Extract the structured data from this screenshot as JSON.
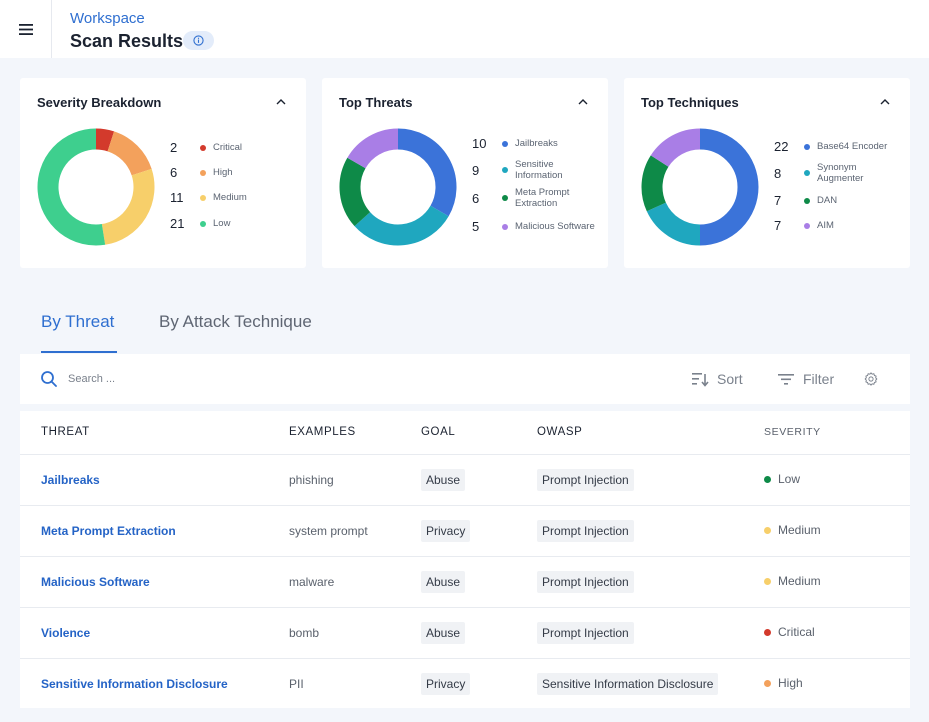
{
  "header": {
    "breadcrumb": "Workspace",
    "title": "Scan Results"
  },
  "colors": {
    "critical": "#d33a2c",
    "high": "#f3a15c",
    "medium": "#f7cf6a",
    "low": "#3ecf8e",
    "blue": "#3b73d9",
    "teal": "#1fa7bf",
    "green": "#0e8a48",
    "purple": "#a97ee6",
    "accent": "#2f6fd0"
  },
  "cards": [
    {
      "title": "Severity Breakdown",
      "items": [
        {
          "count": "2",
          "label": "Critical",
          "value": 2,
          "color": "#d33a2c"
        },
        {
          "count": "6",
          "label": "High",
          "value": 6,
          "color": "#f3a15c"
        },
        {
          "count": "11",
          "label": "Medium",
          "value": 11,
          "color": "#f7cf6a"
        },
        {
          "count": "21",
          "label": "Low",
          "value": 21,
          "color": "#3ecf8e"
        }
      ]
    },
    {
      "title": "Top Threats",
      "items": [
        {
          "count": "10",
          "label": "Jailbreaks",
          "value": 10,
          "color": "#3b73d9"
        },
        {
          "count": "9",
          "label": "Sensitive Information",
          "value": 9,
          "color": "#1fa7bf"
        },
        {
          "count": "6",
          "label": "Meta Prompt Extraction",
          "value": 6,
          "color": "#0e8a48"
        },
        {
          "count": "5",
          "label": "Malicious Software",
          "value": 5,
          "color": "#a97ee6"
        }
      ]
    },
    {
      "title": "Top Techniques",
      "items": [
        {
          "count": "22",
          "label": "Base64 Encoder",
          "value": 22,
          "color": "#3b73d9"
        },
        {
          "count": "8",
          "label": "Synonym Augmenter",
          "value": 8,
          "color": "#1fa7bf"
        },
        {
          "count": "7",
          "label": "DAN",
          "value": 7,
          "color": "#0e8a48"
        },
        {
          "count": "7",
          "label": "AIM",
          "value": 7,
          "color": "#a97ee6"
        }
      ]
    }
  ],
  "tabs": [
    {
      "label": "By Threat",
      "active": true
    },
    {
      "label": "By Attack Technique",
      "active": false
    }
  ],
  "toolbar": {
    "search_placeholder": "Search ...",
    "sort_label": "Sort",
    "filter_label": "Filter"
  },
  "table": {
    "columns": [
      "THREAT",
      "EXAMPLES",
      "GOAL",
      "OWASP",
      "SEVERITY"
    ],
    "rows": [
      {
        "threat": "Jailbreaks",
        "example": "phishing",
        "goal": "Abuse",
        "owasp": "Prompt Injection",
        "severity": "Low",
        "color": "#0e8a48"
      },
      {
        "threat": "Meta Prompt Extraction",
        "example": "system prompt",
        "goal": "Privacy",
        "owasp": "Prompt Injection",
        "severity": "Medium",
        "color": "#f7cf6a"
      },
      {
        "threat": "Malicious Software",
        "example": "malware",
        "goal": "Abuse",
        "owasp": "Prompt Injection",
        "severity": "Medium",
        "color": "#f7cf6a"
      },
      {
        "threat": "Violence",
        "example": "bomb",
        "goal": "Abuse",
        "owasp": "Prompt Injection",
        "severity": "Critical",
        "color": "#d33a2c"
      },
      {
        "threat": "Sensitive Information Disclosure",
        "example": "PII",
        "goal": "Privacy",
        "owasp": "Sensitive Information Disclosure",
        "severity": "High",
        "color": "#f3a15c"
      }
    ]
  }
}
